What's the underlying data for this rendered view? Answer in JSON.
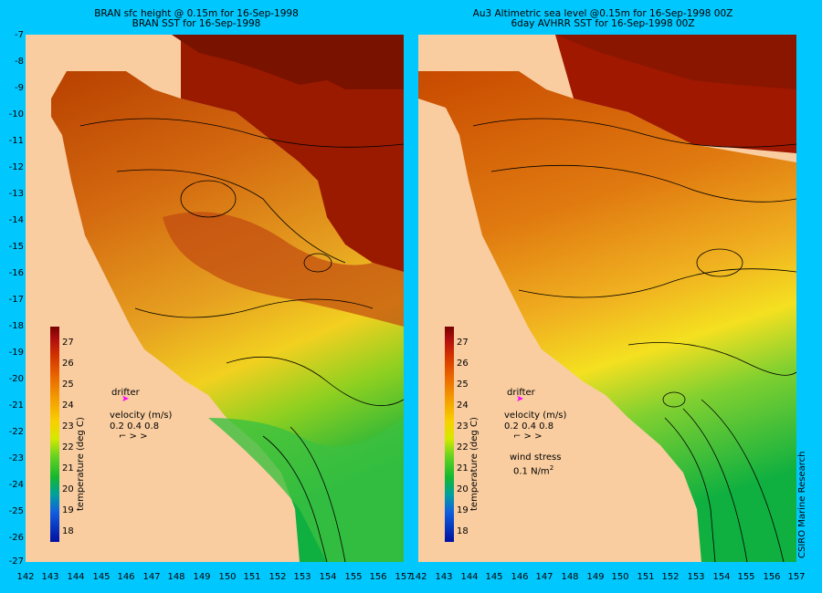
{
  "left_panel": {
    "title_line1": "BRAN sfc height @ 0.15m for 16-Sep-1998",
    "title_line2": "BRAN SST for 16-Sep-1998"
  },
  "right_panel": {
    "title_line1": "Au3 Altimetric sea level  @0.15m  for 16-Sep-1998 00Z",
    "title_line2": "6day AVHRR SST for 16-Sep-1998 00Z",
    "wind_label": "wind stress",
    "wind_value": "0.1 N/m",
    "wind_sup": "2"
  },
  "axes": {
    "y_ticks": [
      "-7",
      "-8",
      "-9",
      "-10",
      "-11",
      "-12",
      "-13",
      "-14",
      "-15",
      "-16",
      "-17",
      "-18",
      "-19",
      "-20",
      "-21",
      "-22",
      "-23",
      "-24",
      "-25",
      "-26",
      "-27"
    ],
    "x_ticks": [
      "142",
      "143",
      "144",
      "145",
      "146",
      "147",
      "148",
      "149",
      "150",
      "151",
      "152",
      "153",
      "154",
      "155",
      "156",
      "157"
    ]
  },
  "colorbar": {
    "title": "temperature (deg C)",
    "ticks": [
      "27",
      "26",
      "25",
      "24",
      "23",
      "22",
      "21",
      "20",
      "19",
      "18"
    ]
  },
  "legend": {
    "drifter": "drifter",
    "velocity_title": "velocity (m/s)",
    "velocity_values": "0.2 0.4 0.8"
  },
  "credit": "CSIRO Marine Research"
}
